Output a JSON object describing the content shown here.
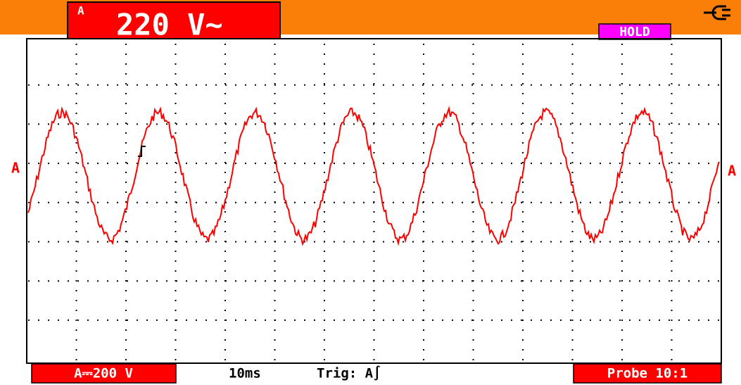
{
  "header": {
    "channel": "A",
    "reading": "220 V~",
    "hold": "HOLD"
  },
  "markers": {
    "left": "A",
    "right": "A"
  },
  "footer": {
    "range": "A⎓200 V",
    "timebase": "10ms",
    "trigger": "Trig: A∫",
    "probe": "Probe 10:1"
  }
}
